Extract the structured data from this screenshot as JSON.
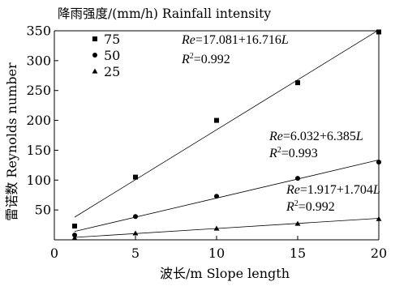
{
  "chart_data": {
    "type": "scatter",
    "title": "降雨强度/(mm/h) Rainfall intensity",
    "xlabel": "波长/m Slope length",
    "ylabel": "雷诺数 Reynolds number",
    "xlim": [
      0,
      20
    ],
    "ylim": [
      0,
      350
    ],
    "x_ticks": [
      "0",
      "5",
      "10",
      "15",
      "20"
    ],
    "y_ticks": [
      "50",
      "100",
      "150",
      "200",
      "250",
      "300",
      "350"
    ],
    "x_tick_values": [
      0,
      5,
      10,
      15,
      20
    ],
    "y_tick_values": [
      50,
      100,
      150,
      200,
      250,
      300,
      350
    ],
    "grid": false,
    "legend_position": "top-left",
    "series": [
      {
        "name": "75",
        "marker": "square",
        "x": [
          1.25,
          5,
          10,
          15,
          20
        ],
        "y": [
          23,
          105,
          200,
          263,
          348
        ],
        "fit": {
          "intercept": 17.081,
          "slope": 16.716
        },
        "equation": {
          "lhs": "Re",
          "rhs": "=17.081+16.716",
          "var": "L",
          "r2_label": "R",
          "r2_sup": "2",
          "r2_value": "=0.992"
        }
      },
      {
        "name": "50",
        "marker": "circle",
        "x": [
          1.25,
          5,
          10,
          15,
          20
        ],
        "y": [
          8,
          39,
          73,
          103,
          130
        ],
        "fit": {
          "intercept": 6.032,
          "slope": 6.385
        },
        "equation": {
          "lhs": "Re",
          "rhs": "=6.032+6.385",
          "var": "L",
          "r2_label": "R",
          "r2_sup": "2",
          "r2_value": "=0.993"
        }
      },
      {
        "name": "25",
        "marker": "triangle",
        "x": [
          1.25,
          5,
          10,
          15,
          20
        ],
        "y": [
          3,
          11,
          19,
          27,
          35
        ],
        "fit": {
          "intercept": 1.917,
          "slope": 1.704
        },
        "equation": {
          "lhs": "Re",
          "rhs": "=1.917+1.704",
          "var": "L",
          "r2_label": "R",
          "r2_sup": "2",
          "r2_value": "=0.992"
        }
      }
    ]
  }
}
